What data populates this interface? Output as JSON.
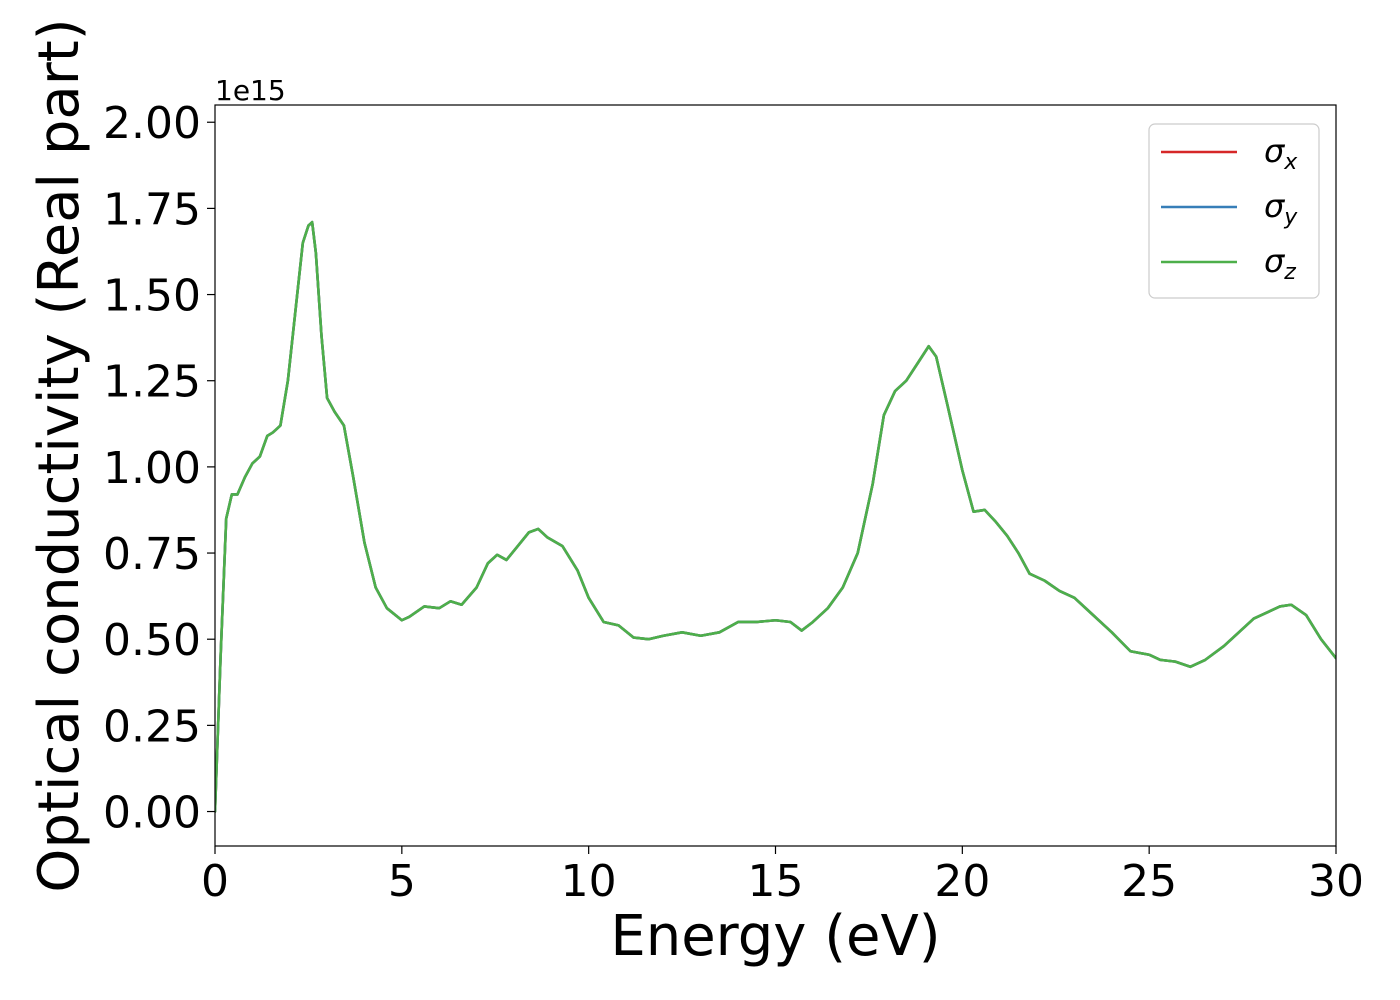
{
  "chart_data": {
    "type": "line",
    "xlabel": "Energy (eV)",
    "ylabel": "Optical conductivity (Real part)",
    "y_offset_label": "1e15",
    "xlim": [
      0,
      30
    ],
    "ylim": [
      -0.1,
      2.05
    ],
    "x_ticks": [
      0,
      5,
      10,
      15,
      20,
      25,
      30
    ],
    "x_tick_labels": [
      "0",
      "5",
      "10",
      "15",
      "20",
      "25",
      "30"
    ],
    "y_ticks": [
      0.0,
      0.25,
      0.5,
      0.75,
      1.0,
      1.25,
      1.5,
      1.75,
      2.0
    ],
    "y_tick_labels": [
      "0.00",
      "0.25",
      "0.50",
      "0.75",
      "1.00",
      "1.25",
      "1.50",
      "1.75",
      "2.00"
    ],
    "grid": false,
    "legend_position": "top-right",
    "series": [
      {
        "name": "σx",
        "symbol": "σ",
        "subscript": "x",
        "color": "#d62728",
        "x": [
          0.0,
          0.15,
          0.3,
          0.45,
          0.6,
          0.8,
          1.0,
          1.2,
          1.4,
          1.55,
          1.75,
          1.95,
          2.15,
          2.35,
          2.5,
          2.6,
          2.7,
          2.85,
          3.0,
          3.2,
          3.45,
          3.7,
          4.0,
          4.3,
          4.6,
          5.0,
          5.2,
          5.6,
          6.0,
          6.3,
          6.6,
          7.0,
          7.3,
          7.55,
          7.8,
          8.1,
          8.4,
          8.65,
          8.9,
          9.3,
          9.7,
          10.0,
          10.4,
          10.8,
          11.2,
          11.6,
          12.0,
          12.5,
          13.0,
          13.5,
          14.0,
          14.5,
          15.0,
          15.4,
          15.7,
          16.0,
          16.4,
          16.8,
          17.2,
          17.6,
          17.9,
          18.2,
          18.5,
          18.8,
          19.1,
          19.3,
          19.6,
          20.0,
          20.3,
          20.6,
          20.9,
          21.2,
          21.5,
          21.8,
          22.2,
          22.6,
          23.0,
          23.4,
          23.8,
          24.0,
          24.5,
          25.0,
          25.3,
          25.7,
          26.1,
          26.5,
          27.0,
          27.4,
          27.8,
          28.2,
          28.5,
          28.8,
          29.2,
          29.6,
          30.0
        ],
        "y": [
          0.0,
          0.45,
          0.85,
          0.92,
          0.92,
          0.97,
          1.01,
          1.03,
          1.09,
          1.1,
          1.12,
          1.25,
          1.45,
          1.65,
          1.7,
          1.71,
          1.62,
          1.38,
          1.2,
          1.16,
          1.12,
          0.97,
          0.78,
          0.65,
          0.59,
          0.555,
          0.565,
          0.595,
          0.59,
          0.61,
          0.6,
          0.65,
          0.72,
          0.745,
          0.73,
          0.77,
          0.81,
          0.82,
          0.795,
          0.77,
          0.7,
          0.62,
          0.55,
          0.54,
          0.505,
          0.5,
          0.51,
          0.52,
          0.51,
          0.52,
          0.55,
          0.55,
          0.555,
          0.55,
          0.525,
          0.55,
          0.59,
          0.65,
          0.75,
          0.95,
          1.15,
          1.22,
          1.25,
          1.3,
          1.35,
          1.32,
          1.18,
          0.99,
          0.87,
          0.875,
          0.84,
          0.8,
          0.75,
          0.69,
          0.67,
          0.64,
          0.62,
          0.58,
          0.54,
          0.52,
          0.465,
          0.455,
          0.44,
          0.435,
          0.42,
          0.44,
          0.48,
          0.52,
          0.56,
          0.58,
          0.595,
          0.6,
          0.57,
          0.5,
          0.445
        ]
      },
      {
        "name": "σy",
        "symbol": "σ",
        "subscript": "y",
        "color": "#377eb8",
        "x": [
          0.0,
          0.15,
          0.3,
          0.45,
          0.6,
          0.8,
          1.0,
          1.2,
          1.4,
          1.55,
          1.75,
          1.95,
          2.15,
          2.35,
          2.5,
          2.6,
          2.7,
          2.85,
          3.0,
          3.2,
          3.45,
          3.7,
          4.0,
          4.3,
          4.6,
          5.0,
          5.2,
          5.6,
          6.0,
          6.3,
          6.6,
          7.0,
          7.3,
          7.55,
          7.8,
          8.1,
          8.4,
          8.65,
          8.9,
          9.3,
          9.7,
          10.0,
          10.4,
          10.8,
          11.2,
          11.6,
          12.0,
          12.5,
          13.0,
          13.5,
          14.0,
          14.5,
          15.0,
          15.4,
          15.7,
          16.0,
          16.4,
          16.8,
          17.2,
          17.6,
          17.9,
          18.2,
          18.5,
          18.8,
          19.1,
          19.3,
          19.6,
          20.0,
          20.3,
          20.6,
          20.9,
          21.2,
          21.5,
          21.8,
          22.2,
          22.6,
          23.0,
          23.4,
          23.8,
          24.0,
          24.5,
          25.0,
          25.3,
          25.7,
          26.1,
          26.5,
          27.0,
          27.4,
          27.8,
          28.2,
          28.5,
          28.8,
          29.2,
          29.6,
          30.0
        ],
        "y": [
          0.0,
          0.45,
          0.85,
          0.92,
          0.92,
          0.97,
          1.01,
          1.03,
          1.09,
          1.1,
          1.12,
          1.25,
          1.45,
          1.65,
          1.7,
          1.71,
          1.62,
          1.38,
          1.2,
          1.16,
          1.12,
          0.97,
          0.78,
          0.65,
          0.59,
          0.555,
          0.565,
          0.595,
          0.59,
          0.61,
          0.6,
          0.65,
          0.72,
          0.745,
          0.73,
          0.77,
          0.81,
          0.82,
          0.795,
          0.77,
          0.7,
          0.62,
          0.55,
          0.54,
          0.505,
          0.5,
          0.51,
          0.52,
          0.51,
          0.52,
          0.55,
          0.55,
          0.555,
          0.55,
          0.525,
          0.55,
          0.59,
          0.65,
          0.75,
          0.95,
          1.15,
          1.22,
          1.25,
          1.3,
          1.35,
          1.32,
          1.18,
          0.99,
          0.87,
          0.875,
          0.84,
          0.8,
          0.75,
          0.69,
          0.67,
          0.64,
          0.62,
          0.58,
          0.54,
          0.52,
          0.465,
          0.455,
          0.44,
          0.435,
          0.42,
          0.44,
          0.48,
          0.52,
          0.56,
          0.58,
          0.595,
          0.6,
          0.57,
          0.5,
          0.445
        ]
      },
      {
        "name": "σz",
        "symbol": "σ",
        "subscript": "z",
        "color": "#4daf4a",
        "x": [
          0.0,
          0.15,
          0.3,
          0.45,
          0.6,
          0.8,
          1.0,
          1.2,
          1.4,
          1.55,
          1.75,
          1.95,
          2.15,
          2.35,
          2.5,
          2.6,
          2.7,
          2.85,
          3.0,
          3.2,
          3.45,
          3.7,
          4.0,
          4.3,
          4.6,
          5.0,
          5.2,
          5.6,
          6.0,
          6.3,
          6.6,
          7.0,
          7.3,
          7.55,
          7.8,
          8.1,
          8.4,
          8.65,
          8.9,
          9.3,
          9.7,
          10.0,
          10.4,
          10.8,
          11.2,
          11.6,
          12.0,
          12.5,
          13.0,
          13.5,
          14.0,
          14.5,
          15.0,
          15.4,
          15.7,
          16.0,
          16.4,
          16.8,
          17.2,
          17.6,
          17.9,
          18.2,
          18.5,
          18.8,
          19.1,
          19.3,
          19.6,
          20.0,
          20.3,
          20.6,
          20.9,
          21.2,
          21.5,
          21.8,
          22.2,
          22.6,
          23.0,
          23.4,
          23.8,
          24.0,
          24.5,
          25.0,
          25.3,
          25.7,
          26.1,
          26.5,
          27.0,
          27.4,
          27.8,
          28.2,
          28.5,
          28.8,
          29.2,
          29.6,
          30.0
        ],
        "y": [
          0.0,
          0.45,
          0.85,
          0.92,
          0.92,
          0.97,
          1.01,
          1.03,
          1.09,
          1.1,
          1.12,
          1.25,
          1.45,
          1.65,
          1.7,
          1.71,
          1.62,
          1.38,
          1.2,
          1.16,
          1.12,
          0.97,
          0.78,
          0.65,
          0.59,
          0.555,
          0.565,
          0.595,
          0.59,
          0.61,
          0.6,
          0.65,
          0.72,
          0.745,
          0.73,
          0.77,
          0.81,
          0.82,
          0.795,
          0.77,
          0.7,
          0.62,
          0.55,
          0.54,
          0.505,
          0.5,
          0.51,
          0.52,
          0.51,
          0.52,
          0.55,
          0.55,
          0.555,
          0.55,
          0.525,
          0.55,
          0.59,
          0.65,
          0.75,
          0.95,
          1.15,
          1.22,
          1.25,
          1.3,
          1.35,
          1.32,
          1.18,
          0.99,
          0.87,
          0.875,
          0.84,
          0.8,
          0.75,
          0.69,
          0.67,
          0.64,
          0.62,
          0.58,
          0.54,
          0.52,
          0.465,
          0.455,
          0.44,
          0.435,
          0.42,
          0.44,
          0.48,
          0.52,
          0.56,
          0.58,
          0.595,
          0.6,
          0.57,
          0.5,
          0.445
        ]
      }
    ]
  }
}
